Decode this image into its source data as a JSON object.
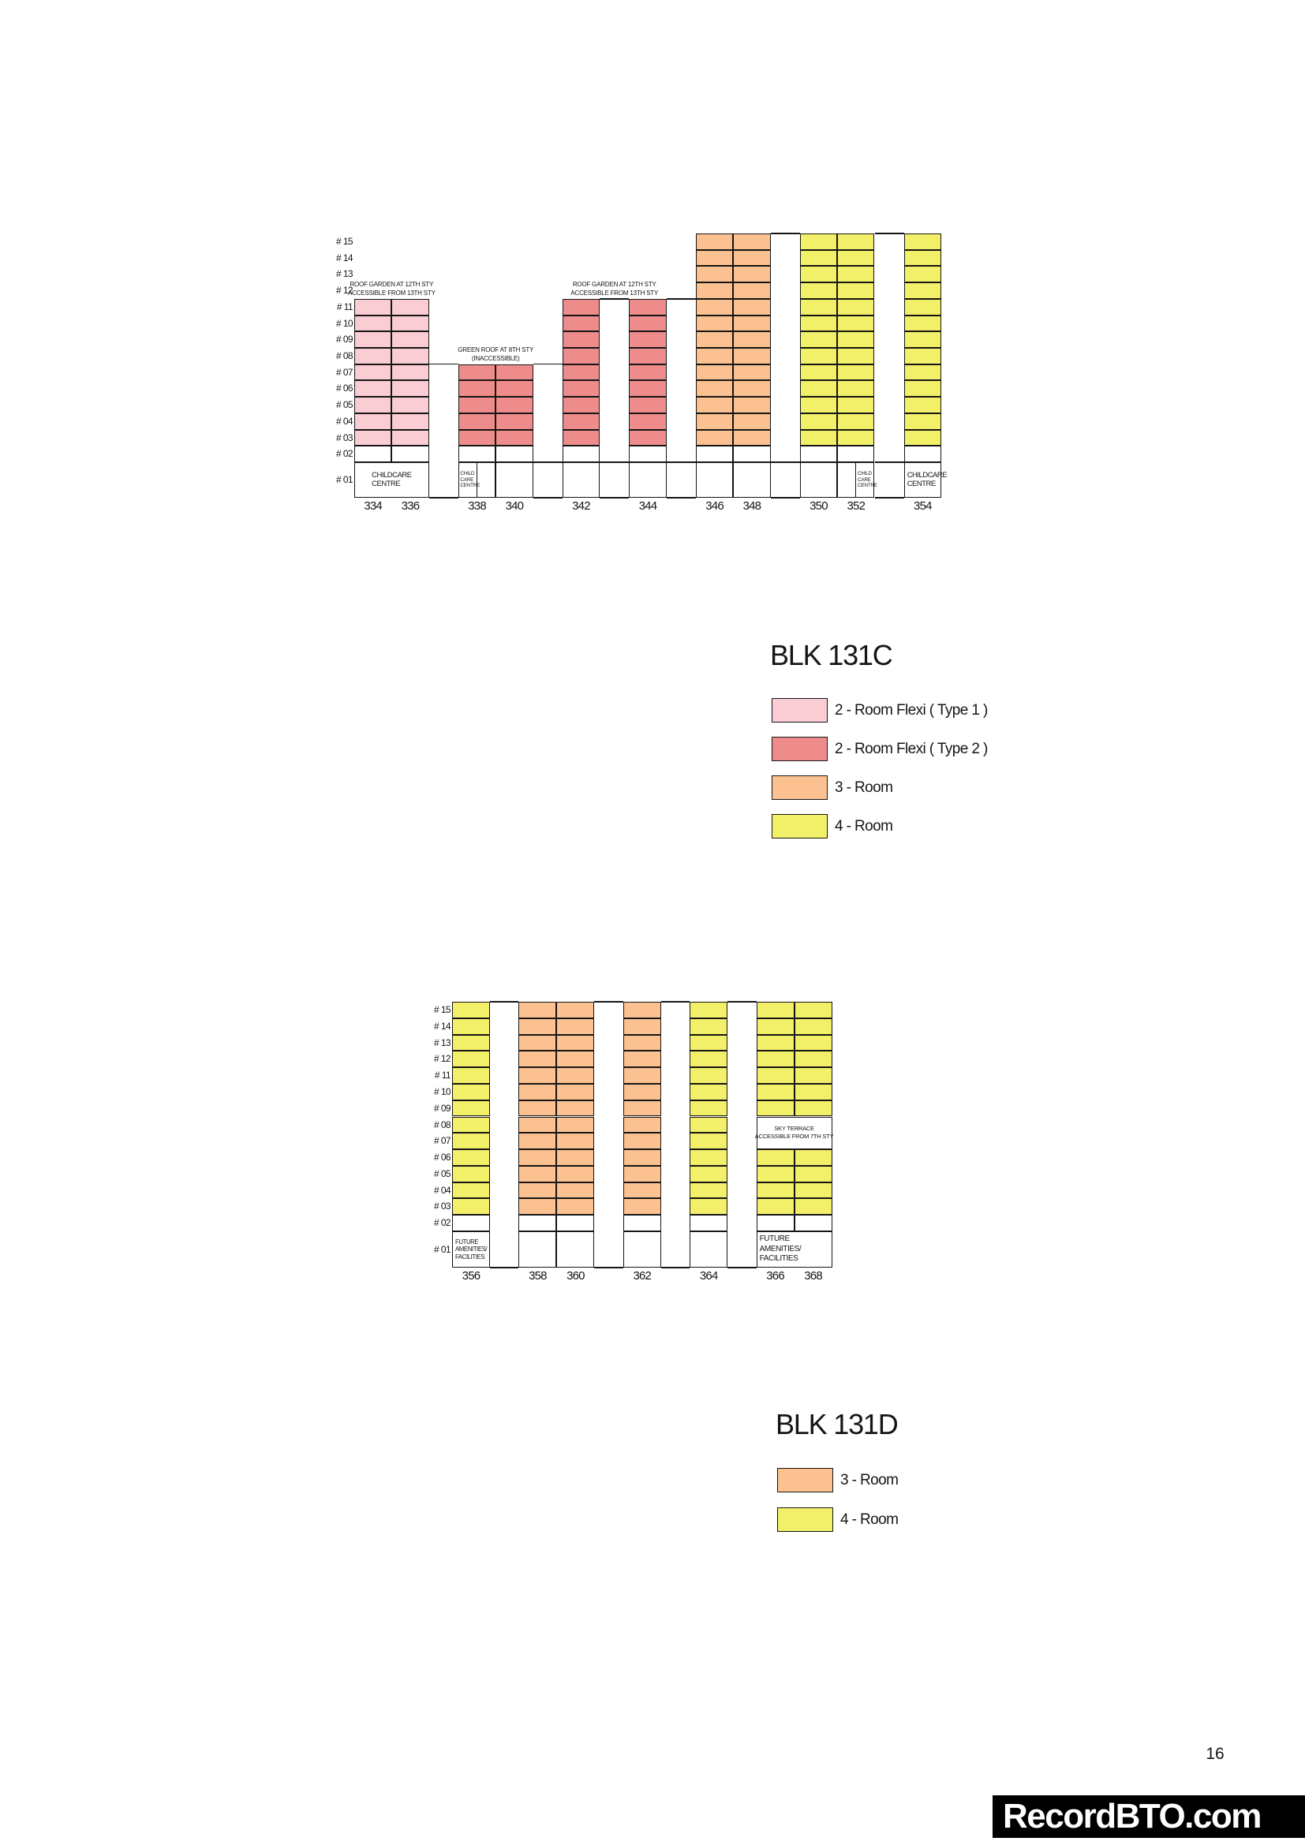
{
  "page": {
    "number": "16"
  },
  "watermark": {
    "text": "RecordBTO.com",
    "bg": "#000000",
    "fg": "#ffffff"
  },
  "unit_colors": {
    "flexi1": "#F9CDD3",
    "flexi2": "#EE8C8C",
    "room3": "#FBC190",
    "room4": "#F2EF69"
  },
  "floor_labels": [
    "# 15",
    "# 14",
    "# 13",
    "# 12",
    "# 11",
    "# 10",
    "# 09",
    "# 08",
    "# 07",
    "# 06",
    "# 05",
    "# 04",
    "# 03",
    "# 02",
    "# 01"
  ],
  "blocks": [
    {
      "title": "BLK 131C",
      "legend": [
        {
          "type": "flexi1",
          "label": "2 - Room Flexi ( Type 1 )"
        },
        {
          "type": "flexi2",
          "label": "2 - Room Flexi ( Type 2 )"
        },
        {
          "type": "room3",
          "label": "3 - Room"
        },
        {
          "type": "room4",
          "label": "4 - Room"
        }
      ],
      "stacks": [
        {
          "label": "334",
          "type": "flexi1",
          "floors": [
            3,
            11
          ]
        },
        {
          "label": "336",
          "type": "flexi1",
          "floors": [
            3,
            11
          ]
        },
        {
          "label": "338",
          "type": "flexi2",
          "floors": [
            3,
            7
          ],
          "gap_before": true
        },
        {
          "label": "340",
          "type": "flexi2",
          "floors": [
            3,
            7
          ]
        },
        {
          "label": "342",
          "type": "flexi2",
          "floors": [
            3,
            11
          ],
          "gap_before": true
        },
        {
          "label": "344",
          "type": "flexi2",
          "floors": [
            3,
            11
          ],
          "gap_before": true
        },
        {
          "label": "346",
          "type": "room3",
          "floors": [
            3,
            15
          ],
          "gap_before": true
        },
        {
          "label": "348",
          "type": "room3",
          "floors": [
            3,
            15
          ]
        },
        {
          "label": "350",
          "type": "room4",
          "floors": [
            3,
            15
          ],
          "gap_before": true
        },
        {
          "label": "352",
          "type": "room4",
          "floors": [
            3,
            15
          ]
        },
        {
          "label": "354",
          "type": "room4",
          "floors": [
            3,
            15
          ],
          "gap_before": true
        }
      ],
      "annotations": [
        {
          "lines": [
            "ROOF GARDEN AT 12TH STY",
            "ACCESSIBLE FROM 13TH STY"
          ],
          "span": [
            "334",
            "336"
          ]
        },
        {
          "lines": [
            "GREEN ROOF AT 8TH STY",
            "(INACCESSIBLE)"
          ],
          "span": [
            "338",
            "340"
          ]
        },
        {
          "lines": [
            "ROOF GARDEN AT 12TH STY",
            "ACCESSIBLE FROM 13TH STY"
          ],
          "span": [
            "342",
            "344"
          ]
        }
      ],
      "ground_units": [
        {
          "stacks": [
            "334",
            "336"
          ],
          "lines": [
            "CHILDCARE",
            "CENTRE"
          ],
          "style": "childcare-center"
        },
        {
          "stacks": [
            "338"
          ],
          "lines": [
            "CHILD",
            "CARE",
            "CENTRE"
          ],
          "style": "tiny-left"
        },
        {
          "stacks": [
            "352"
          ],
          "lines": [
            "CHILD",
            "CARE",
            "CENTRE"
          ],
          "style": "tiny-right"
        },
        {
          "stacks": [
            "354"
          ],
          "lines": [
            "CHILDCARE",
            "CENTRE"
          ],
          "style": "childcare-left"
        }
      ]
    },
    {
      "title": "BLK 131D",
      "legend": [
        {
          "type": "room3",
          "label": "3 - Room"
        },
        {
          "type": "room4",
          "label": "4 - Room"
        }
      ],
      "stacks": [
        {
          "label": "356",
          "type": "room4",
          "floors": [
            3,
            15
          ]
        },
        {
          "label": "358",
          "type": "room3",
          "floors": [
            3,
            15
          ],
          "gap_before": true
        },
        {
          "label": "360",
          "type": "room3",
          "floors": [
            3,
            15
          ]
        },
        {
          "label": "362",
          "type": "room3",
          "floors": [
            3,
            15
          ],
          "gap_before": true
        },
        {
          "label": "364",
          "type": "room4",
          "floors": [
            3,
            15
          ],
          "gap_before": true
        },
        {
          "label": "366",
          "type": "room4",
          "floors": [
            3,
            15
          ],
          "void": [
            7,
            8
          ],
          "gap_before": true
        },
        {
          "label": "368",
          "type": "room4",
          "floors": [
            3,
            15
          ],
          "void": [
            7,
            8
          ]
        }
      ],
      "annotations": [],
      "void_box": {
        "stacks": [
          "366",
          "368"
        ],
        "floors": [
          7,
          8
        ],
        "lines": [
          "SKY TERRACE",
          "ACCESSIBLE FROM 7TH STY"
        ]
      },
      "ground_units": [
        {
          "stacks": [
            "356"
          ],
          "lines": [
            "FUTURE",
            "AMENITIES/",
            "FACILITIES"
          ],
          "style": "future-small"
        },
        {
          "stacks": [
            "366",
            "368"
          ],
          "lines": [
            "FUTURE AMENITIES/",
            "FACILITIES"
          ],
          "style": "future"
        }
      ]
    }
  ]
}
